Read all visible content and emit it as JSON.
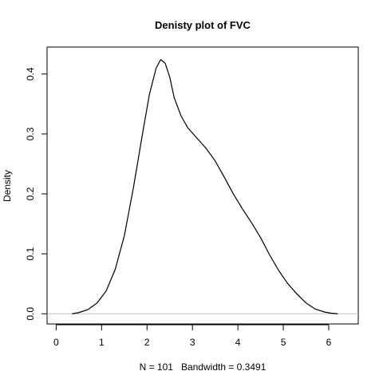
{
  "chart_data": {
    "type": "line",
    "title": "Denisty plot of  FVC",
    "xlabel": "N = 101   Bandwidth = 0.3491",
    "ylabel": "Density",
    "xlim": [
      -0.2,
      6.65
    ],
    "ylim": [
      -0.017,
      0.445
    ],
    "x_ticks": [
      0,
      1,
      2,
      3,
      4,
      5,
      6
    ],
    "y_ticks": [
      0.0,
      0.1,
      0.2,
      0.3,
      0.4
    ],
    "y_tick_labels": [
      "0.0",
      "0.1",
      "0.2",
      "0.3",
      "0.4"
    ],
    "zero_line": true,
    "grid": false,
    "series": [
      {
        "x": [
          0.35,
          0.5,
          0.7,
          0.9,
          1.1,
          1.3,
          1.5,
          1.7,
          1.9,
          2.05,
          2.2,
          2.3,
          2.4,
          2.5,
          2.6,
          2.75,
          2.9,
          3.1,
          3.3,
          3.5,
          3.7,
          3.9,
          4.1,
          4.3,
          4.5,
          4.7,
          4.9,
          5.1,
          5.3,
          5.5,
          5.7,
          5.9,
          6.05,
          6.2
        ],
        "y": [
          0.0,
          0.002,
          0.007,
          0.018,
          0.038,
          0.074,
          0.13,
          0.21,
          0.3,
          0.365,
          0.41,
          0.424,
          0.418,
          0.395,
          0.36,
          0.33,
          0.31,
          0.293,
          0.276,
          0.255,
          0.228,
          0.2,
          0.175,
          0.152,
          0.127,
          0.098,
          0.072,
          0.05,
          0.033,
          0.018,
          0.008,
          0.003,
          0.001,
          0.0
        ]
      }
    ],
    "colors": {
      "line": "#000000",
      "zero_line": "#bebebe",
      "frame": "#000000"
    }
  }
}
